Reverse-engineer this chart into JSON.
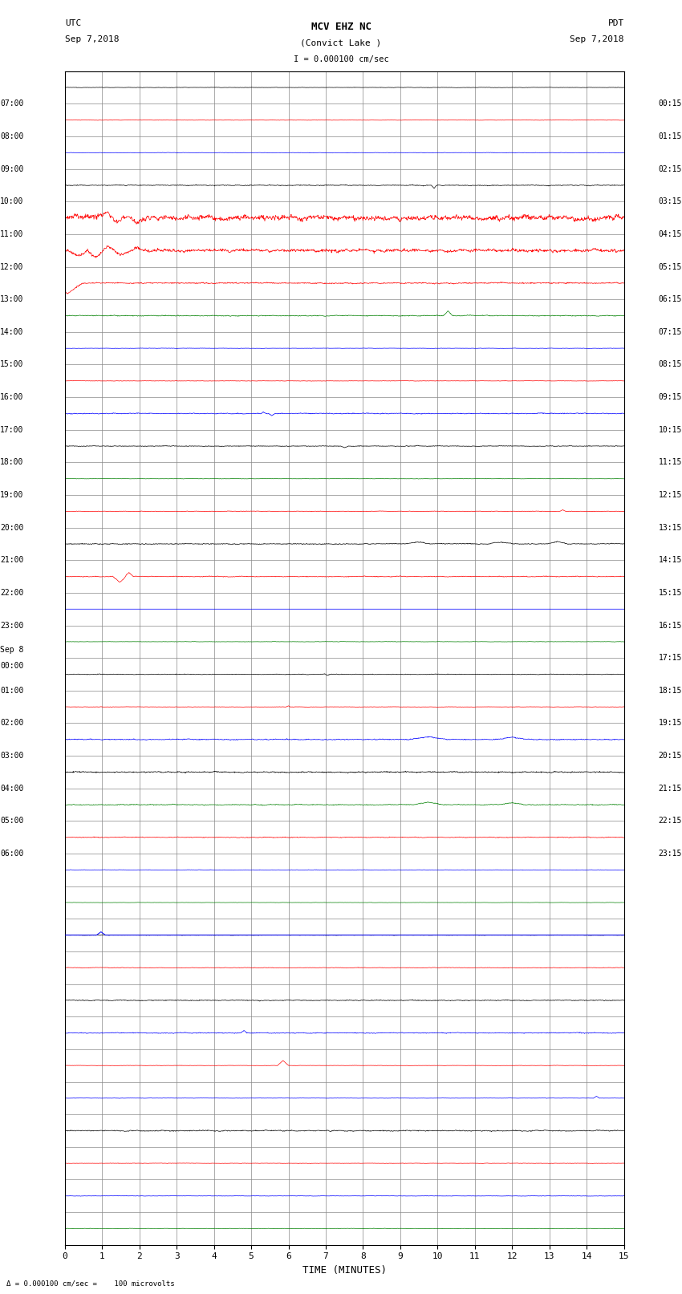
{
  "title_line1": "MCV EHZ NC",
  "title_line2": "(Convict Lake )",
  "scale_text": "I = 0.000100 cm/sec",
  "footer_text": "= 0.000100 cm/sec =    100 microvolts",
  "utc_label": "UTC",
  "utc_date": "Sep 7,2018",
  "pdt_label": "PDT",
  "pdt_date": "Sep 7,2018",
  "xlabel": "TIME (MINUTES)",
  "x_min": 0,
  "x_max": 15,
  "num_rows": 36,
  "left_labels_utc": [
    "07:00",
    "08:00",
    "09:00",
    "10:00",
    "11:00",
    "12:00",
    "13:00",
    "14:00",
    "15:00",
    "16:00",
    "17:00",
    "18:00",
    "19:00",
    "20:00",
    "21:00",
    "22:00",
    "23:00",
    "Sep 8\n00:00",
    "01:00",
    "02:00",
    "03:00",
    "04:00",
    "05:00",
    "06:00"
  ],
  "right_labels_pdt": [
    "00:15",
    "01:15",
    "02:15",
    "03:15",
    "04:15",
    "05:15",
    "06:15",
    "07:15",
    "08:15",
    "09:15",
    "10:15",
    "11:15",
    "12:15",
    "13:15",
    "14:15",
    "15:15",
    "16:15",
    "17:15",
    "18:15",
    "19:15",
    "20:15",
    "21:15",
    "22:15",
    "23:15"
  ],
  "bg_color": "#ffffff",
  "grid_color": "#888888",
  "trace_colors_cycle": [
    "black",
    "red",
    "blue",
    "green"
  ],
  "fig_width": 8.5,
  "fig_height": 16.13
}
